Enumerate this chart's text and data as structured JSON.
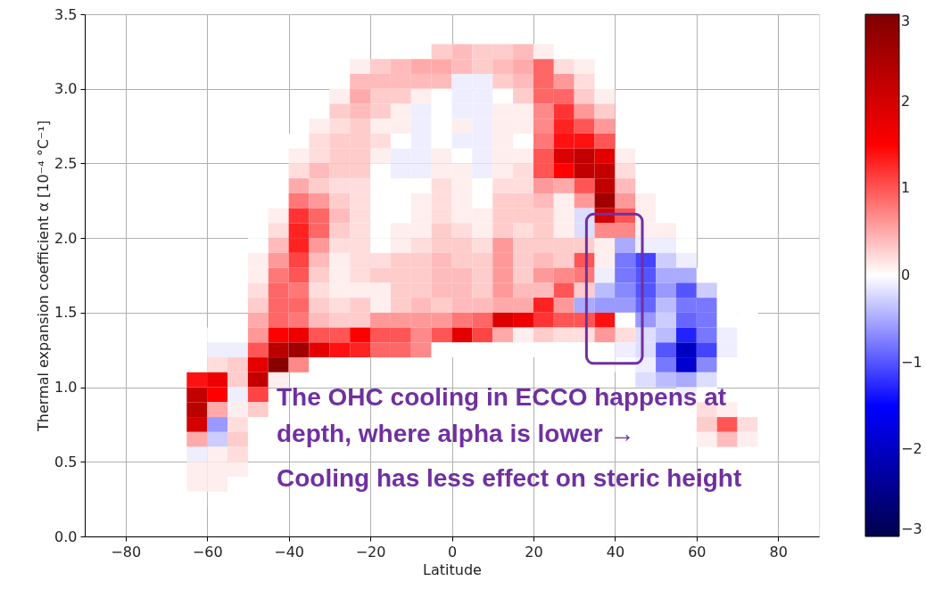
{
  "chart_data": {
    "type": "heatmap",
    "xlabel": "Latitude",
    "ylabel": "Thermal expansion coefficient α [10⁻⁴ °C⁻¹]",
    "annotations": [
      "The OHC cooling in ECCO happens at",
      "depth, where alpha is lower →",
      "Cooling has less effect on steric height"
    ],
    "x": [
      -62.5,
      -57.5,
      -52.5,
      -47.5,
      -42.5,
      -37.5,
      -32.5,
      -27.5,
      -22.5,
      -17.5,
      -12.5,
      -7.5,
      -2.5,
      2.5,
      7.5,
      12.5,
      17.5,
      22.5,
      27.5,
      32.5,
      37.5,
      42.5,
      47.5,
      52.5,
      57.5,
      62.5,
      67.5,
      72.5
    ],
    "y": [
      3.25,
      3.15,
      3.05,
      2.95,
      2.85,
      2.75,
      2.65,
      2.55,
      2.45,
      2.35,
      2.25,
      2.15,
      2.05,
      1.95,
      1.85,
      1.75,
      1.65,
      1.55,
      1.45,
      1.35,
      1.25,
      1.15,
      1.05,
      0.95,
      0.85,
      0.75,
      0.65,
      0.55,
      0.45,
      0.35,
      0.25
    ],
    "cells": [
      [
        null,
        null,
        null,
        null,
        null,
        null,
        null,
        null,
        null,
        null,
        null,
        null,
        0.3,
        0.4,
        0.3,
        0.3,
        0.4,
        0.1,
        null,
        null,
        null,
        null,
        null,
        null,
        null,
        null,
        null,
        null
      ],
      [
        null,
        null,
        null,
        null,
        null,
        null,
        null,
        null,
        0.1,
        0.3,
        0.4,
        0.5,
        0.5,
        0.4,
        0.3,
        0.4,
        0.5,
        0.9,
        0.2,
        0.1,
        null,
        null,
        null,
        null,
        null,
        null,
        null,
        null
      ],
      [
        null,
        null,
        null,
        null,
        null,
        null,
        null,
        null,
        0.4,
        0.4,
        0.4,
        0.4,
        0.4,
        -0.1,
        -0.1,
        0.3,
        0.4,
        0.9,
        0.6,
        0.2,
        null,
        null,
        null,
        null,
        null,
        null,
        null,
        null
      ],
      [
        null,
        null,
        null,
        null,
        null,
        null,
        null,
        0.1,
        0.5,
        0.3,
        0.3,
        0.1,
        0.0,
        -0.1,
        -0.1,
        0.0,
        0.3,
        0.9,
        0.9,
        0.3,
        0.1,
        null,
        null,
        null,
        null,
        null,
        null,
        null
      ],
      [
        null,
        null,
        null,
        null,
        null,
        null,
        0.0,
        0.3,
        0.4,
        0.3,
        0.1,
        -0.1,
        0.0,
        -0.1,
        -0.1,
        0.1,
        0.1,
        0.7,
        1.2,
        0.6,
        0.3,
        null,
        null,
        null,
        null,
        null,
        null,
        null
      ],
      [
        null,
        null,
        null,
        null,
        null,
        null,
        0.1,
        0.2,
        0.3,
        0.1,
        0.1,
        -0.1,
        0.0,
        0.1,
        -0.1,
        0.1,
        0.1,
        0.7,
        1.3,
        1.0,
        0.6,
        null,
        null,
        null,
        null,
        null,
        null,
        null
      ],
      [
        null,
        null,
        null,
        null,
        null,
        0.0,
        0.2,
        0.3,
        0.3,
        0.2,
        0.0,
        -0.1,
        0.0,
        -0.1,
        -0.1,
        0.1,
        0.0,
        0.8,
        1.4,
        1.4,
        1.0,
        null,
        null,
        null,
        null,
        null,
        null,
        null
      ],
      [
        null,
        null,
        null,
        null,
        null,
        0.1,
        0.2,
        0.3,
        0.3,
        0.1,
        -0.1,
        -0.1,
        0.1,
        0.0,
        -0.1,
        0.1,
        0.1,
        1.0,
        1.9,
        2.2,
        1.8,
        0.1,
        null,
        null,
        null,
        null,
        null,
        null
      ],
      [
        null,
        null,
        null,
        null,
        null,
        0.2,
        0.4,
        0.3,
        0.3,
        0.0,
        -0.1,
        -0.1,
        0.1,
        0.1,
        -0.1,
        0.1,
        0.2,
        1.0,
        1.5,
        2.2,
        2.2,
        0.2,
        null,
        null,
        null,
        null,
        null,
        null
      ],
      [
        null,
        null,
        null,
        null,
        0.0,
        0.5,
        0.3,
        0.2,
        0.2,
        0.0,
        0.0,
        0.0,
        0.2,
        0.1,
        0.0,
        0.2,
        0.2,
        0.6,
        0.5,
        1.0,
        2.2,
        0.4,
        null,
        null,
        null,
        null,
        null,
        null
      ],
      [
        null,
        null,
        null,
        null,
        0.0,
        0.8,
        0.6,
        0.3,
        0.2,
        0.0,
        0.0,
        0.1,
        0.2,
        0.1,
        0.0,
        0.3,
        0.3,
        0.4,
        0.1,
        0.6,
        2.6,
        0.6,
        0.1,
        null,
        null,
        null,
        null,
        null
      ],
      [
        null,
        null,
        null,
        null,
        0.1,
        1.2,
        0.9,
        0.4,
        0.2,
        0.0,
        0.0,
        0.1,
        0.2,
        0.1,
        0.1,
        0.3,
        0.3,
        0.3,
        0.1,
        -0.2,
        2.0,
        1.0,
        0.1,
        null,
        null,
        null,
        null,
        null
      ],
      [
        null,
        null,
        null,
        null,
        0.2,
        1.3,
        0.9,
        0.3,
        0.2,
        0.0,
        0.1,
        0.1,
        0.3,
        0.2,
        0.1,
        0.3,
        0.2,
        0.3,
        0.1,
        -0.2,
        0.7,
        0.7,
        0.1,
        0.1,
        0.0,
        null,
        null,
        null
      ],
      [
        null,
        null,
        null,
        0.0,
        0.4,
        1.3,
        0.6,
        0.2,
        0.2,
        0.0,
        0.1,
        0.2,
        0.3,
        0.3,
        0.2,
        0.6,
        0.3,
        0.3,
        0.3,
        0.3,
        0.1,
        -0.5,
        -0.1,
        -0.1,
        0.0,
        null,
        null,
        null
      ],
      [
        null,
        null,
        null,
        0.1,
        0.6,
        1.1,
        0.4,
        0.1,
        0.2,
        0.2,
        0.3,
        0.3,
        0.4,
        0.3,
        0.3,
        0.6,
        0.3,
        0.4,
        0.3,
        1.0,
        0.1,
        -0.8,
        -1.1,
        -0.3,
        -0.1,
        null,
        null,
        null
      ],
      [
        null,
        null,
        null,
        0.1,
        0.8,
        1.0,
        0.3,
        0.1,
        0.2,
        0.3,
        0.3,
        0.3,
        0.4,
        0.4,
        0.3,
        0.6,
        0.3,
        0.6,
        0.7,
        0.8,
        -0.1,
        -0.8,
        -1.0,
        -0.5,
        -0.5,
        0.0,
        null,
        null
      ],
      [
        null,
        null,
        null,
        0.2,
        0.9,
        0.8,
        0.2,
        0.1,
        0.1,
        0.1,
        0.3,
        0.3,
        0.4,
        0.4,
        0.3,
        0.6,
        0.4,
        0.4,
        1.0,
        0.3,
        -0.4,
        -0.7,
        -1.0,
        -0.6,
        -1.0,
        -0.3,
        null,
        null
      ],
      [
        null,
        null,
        null,
        0.3,
        0.9,
        0.9,
        0.3,
        0.2,
        0.3,
        0.1,
        0.3,
        0.4,
        0.3,
        0.4,
        0.4,
        0.5,
        0.5,
        1.3,
        0.6,
        -0.5,
        -0.6,
        -0.6,
        -0.9,
        -0.4,
        -0.8,
        -0.8,
        0.0,
        null
      ],
      [
        null,
        null,
        null,
        0.5,
        0.9,
        0.8,
        0.4,
        0.3,
        0.3,
        0.6,
        0.6,
        0.6,
        0.6,
        0.8,
        0.9,
        1.9,
        1.7,
        1.2,
        1.0,
        1.0,
        1.4,
        0.0,
        -0.6,
        -0.3,
        -0.9,
        -0.8,
        0.0,
        0.0
      ],
      [
        null,
        0.0,
        0.0,
        0.6,
        1.5,
        1.7,
        1.0,
        1.0,
        1.5,
        1.0,
        1.0,
        0.7,
        1.0,
        1.8,
        1.1,
        0.5,
        0.1,
        0.3,
        0.2,
        0.2,
        0.6,
        0.2,
        -0.2,
        -0.4,
        -1.3,
        -0.8,
        -0.1,
        0.0
      ],
      [
        0.0,
        -0.1,
        -0.1,
        1.0,
        2.3,
        2.6,
        1.8,
        1.4,
        1.3,
        0.9,
        0.9,
        0.7,
        0.0,
        0.0,
        0.0,
        0.0,
        0.0,
        0.0,
        0.0,
        0.0,
        0.0,
        -0.1,
        -0.2,
        -1.0,
        -2.0,
        -1.1,
        -0.1,
        0.0
      ],
      [
        0.0,
        0.2,
        0.3,
        1.8,
        2.9,
        0.7,
        0.0,
        0.0,
        0.0,
        null,
        null,
        null,
        null,
        null,
        null,
        null,
        null,
        null,
        null,
        null,
        null,
        0.0,
        -0.1,
        -0.8,
        -1.9,
        -0.7,
        0.0,
        null
      ],
      [
        1.4,
        1.7,
        0.3,
        2.2,
        0.1,
        null,
        null,
        null,
        null,
        null,
        null,
        null,
        null,
        null,
        null,
        null,
        null,
        null,
        null,
        null,
        null,
        null,
        -0.2,
        -0.4,
        -0.5,
        -0.2,
        0.0,
        null
      ],
      [
        2.2,
        1.5,
        -0.1,
        1.1,
        null,
        null,
        null,
        null,
        null,
        null,
        null,
        null,
        null,
        null,
        null,
        null,
        null,
        null,
        null,
        null,
        null,
        null,
        null,
        null,
        -0.1,
        0.0,
        null,
        null
      ],
      [
        2.3,
        0.5,
        0.1,
        0.3,
        null,
        null,
        null,
        null,
        null,
        null,
        null,
        null,
        null,
        null,
        null,
        null,
        null,
        null,
        null,
        null,
        null,
        null,
        null,
        null,
        null,
        0.2,
        0.1,
        null
      ],
      [
        2.0,
        -0.6,
        0.2,
        0.0,
        null,
        null,
        null,
        null,
        null,
        null,
        null,
        null,
        null,
        null,
        null,
        null,
        null,
        null,
        null,
        null,
        null,
        null,
        null,
        null,
        null,
        0.3,
        1.0,
        0.2
      ],
      [
        0.5,
        -0.3,
        0.3,
        null,
        null,
        null,
        null,
        null,
        null,
        null,
        null,
        null,
        null,
        null,
        null,
        null,
        null,
        null,
        null,
        null,
        null,
        null,
        null,
        null,
        null,
        0.1,
        0.4,
        0.1
      ],
      [
        -0.1,
        0.1,
        0.2,
        null,
        null,
        null,
        null,
        null,
        null,
        null,
        null,
        null,
        null,
        null,
        null,
        null,
        null,
        null,
        null,
        null,
        null,
        null,
        null,
        null,
        null,
        null,
        null,
        null
      ],
      [
        0.1,
        0.1,
        0.1,
        null,
        null,
        null,
        null,
        null,
        null,
        null,
        null,
        null,
        null,
        null,
        null,
        null,
        null,
        null,
        null,
        null,
        null,
        null,
        null,
        null,
        null,
        null,
        null,
        null
      ],
      [
        0.1,
        0.1,
        null,
        null,
        null,
        null,
        null,
        null,
        null,
        null,
        null,
        null,
        null,
        null,
        null,
        null,
        null,
        null,
        null,
        null,
        null,
        null,
        null,
        null,
        null,
        null,
        null,
        null
      ],
      [
        0.0,
        null,
        null,
        null,
        null,
        null,
        null,
        null,
        null,
        null,
        null,
        null,
        null,
        null,
        null,
        null,
        null,
        null,
        null,
        null,
        null,
        null,
        null,
        null,
        null,
        null,
        null,
        null
      ]
    ],
    "xlim": [
      -90,
      90
    ],
    "xticks": [
      -80,
      -60,
      -40,
      -20,
      0,
      20,
      40,
      60,
      80
    ],
    "ylim": [
      0,
      3.5
    ],
    "yticks": [
      {
        "value": 0,
        "label": "0.0"
      },
      0.5,
      {
        "value": 1,
        "label": "1.0"
      },
      1.5,
      {
        "value": 2,
        "label": "2.0"
      },
      2.5,
      {
        "value": 3,
        "label": "3.0"
      },
      3.5
    ],
    "clim": [
      -3,
      3
    ],
    "cticks": [
      -3,
      -2,
      -1,
      0,
      1,
      2,
      3
    ],
    "grid": true
  }
}
